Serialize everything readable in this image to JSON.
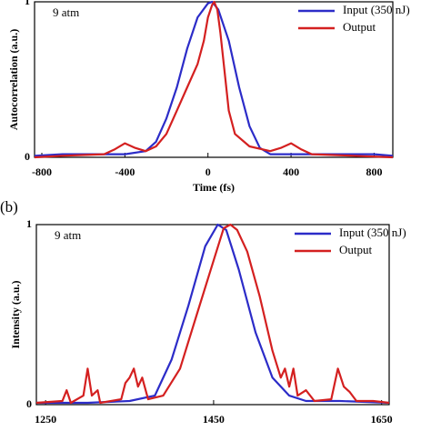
{
  "chart_data": [
    {
      "type": "line",
      "annotation": "9 atm",
      "xlabel": "Time (fs)",
      "ylabel": "Autocorrelation (a.u.)",
      "xlim": [
        -835,
        890
      ],
      "ylim": [
        0,
        1
      ],
      "xticks": [
        -800,
        -400,
        0,
        400,
        800
      ],
      "yticks": [
        0,
        1
      ],
      "legend": "top-right",
      "series": [
        {
          "name": "Input (350 nJ)",
          "color": "#2c2cc8",
          "x": [
            -835,
            -700,
            -600,
            -500,
            -400,
            -300,
            -250,
            -200,
            -150,
            -100,
            -50,
            0,
            20,
            50,
            100,
            150,
            200,
            250,
            300,
            400,
            500,
            600,
            700,
            800,
            890
          ],
          "values": [
            0.01,
            0.02,
            0.02,
            0.02,
            0.02,
            0.04,
            0.1,
            0.25,
            0.45,
            0.7,
            0.9,
            0.99,
            1.0,
            0.95,
            0.75,
            0.45,
            0.2,
            0.06,
            0.02,
            0.02,
            0.02,
            0.02,
            0.02,
            0.02,
            0.01
          ]
        },
        {
          "name": "Output",
          "color": "#d42020",
          "x": [
            -835,
            -700,
            -500,
            -450,
            -400,
            -350,
            -300,
            -250,
            -200,
            -150,
            -100,
            -50,
            -20,
            0,
            20,
            30,
            45,
            60,
            80,
            100,
            130,
            200,
            300,
            350,
            400,
            450,
            500,
            700,
            890
          ],
          "values": [
            0.0,
            0.01,
            0.02,
            0.05,
            0.09,
            0.06,
            0.04,
            0.07,
            0.15,
            0.3,
            0.45,
            0.6,
            0.75,
            0.9,
            0.98,
            1.0,
            0.95,
            0.8,
            0.55,
            0.3,
            0.15,
            0.07,
            0.04,
            0.06,
            0.09,
            0.05,
            0.02,
            0.01,
            0.0
          ]
        }
      ]
    },
    {
      "type": "line",
      "panel_label": "(b)",
      "annotation": "9 atm",
      "ylabel": "Intensity (a.u.)",
      "xlim": [
        1239,
        1659
      ],
      "ylim": [
        0,
        1
      ],
      "xticks": [
        1250,
        1450,
        1650
      ],
      "yticks": [
        0,
        1
      ],
      "legend": "top-right",
      "series": [
        {
          "name": "Input (350 nJ)",
          "color": "#2c2cc8",
          "x": [
            1239,
            1300,
            1350,
            1380,
            1400,
            1420,
            1440,
            1455,
            1465,
            1480,
            1500,
            1520,
            1540,
            1560,
            1600,
            1659
          ],
          "values": [
            0.01,
            0.01,
            0.02,
            0.05,
            0.25,
            0.55,
            0.88,
            1.0,
            0.97,
            0.75,
            0.4,
            0.15,
            0.05,
            0.02,
            0.02,
            0.01
          ]
        },
        {
          "name": "Output",
          "color": "#d42020",
          "x": [
            1239,
            1270,
            1275,
            1280,
            1295,
            1300,
            1305,
            1312,
            1315,
            1340,
            1345,
            1350,
            1355,
            1360,
            1365,
            1372,
            1390,
            1410,
            1430,
            1450,
            1462,
            1470,
            1478,
            1490,
            1505,
            1520,
            1530,
            1535,
            1540,
            1545,
            1550,
            1560,
            1570,
            1590,
            1598,
            1605,
            1612,
            1620,
            1640,
            1659
          ],
          "values": [
            0.01,
            0.02,
            0.08,
            0.01,
            0.05,
            0.2,
            0.05,
            0.08,
            0.01,
            0.03,
            0.12,
            0.15,
            0.2,
            0.1,
            0.15,
            0.03,
            0.05,
            0.2,
            0.5,
            0.8,
            0.98,
            1.0,
            0.97,
            0.85,
            0.6,
            0.3,
            0.15,
            0.2,
            0.1,
            0.2,
            0.05,
            0.08,
            0.02,
            0.03,
            0.2,
            0.1,
            0.07,
            0.02,
            0.02,
            0.01
          ]
        }
      ]
    }
  ]
}
